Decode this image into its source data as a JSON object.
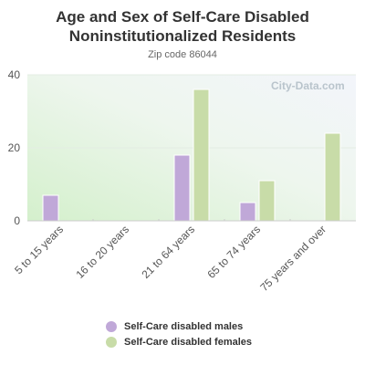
{
  "chart_data": {
    "type": "bar",
    "title_line1": "Age and Sex of Self-Care Disabled",
    "title_line2": "Noninstitutionalized Residents",
    "subtitle": "Zip code 86044",
    "categories": [
      "5 to 15 years",
      "16 to 20 years",
      "21 to 64 years",
      "65 to 74 years",
      "75 years and over"
    ],
    "series": [
      {
        "name": "Self-Care disabled males",
        "color": "#c0a8d8",
        "values": [
          7,
          0,
          18,
          5,
          0
        ]
      },
      {
        "name": "Self-Care disabled females",
        "color": "#c8dca8",
        "values": [
          0,
          0,
          36,
          11,
          24
        ]
      }
    ],
    "ylim": [
      0,
      40
    ],
    "yticks": [
      "0",
      "20",
      "40"
    ],
    "grid": true,
    "legend_position": "bottom",
    "watermark": "City-Data.com"
  }
}
